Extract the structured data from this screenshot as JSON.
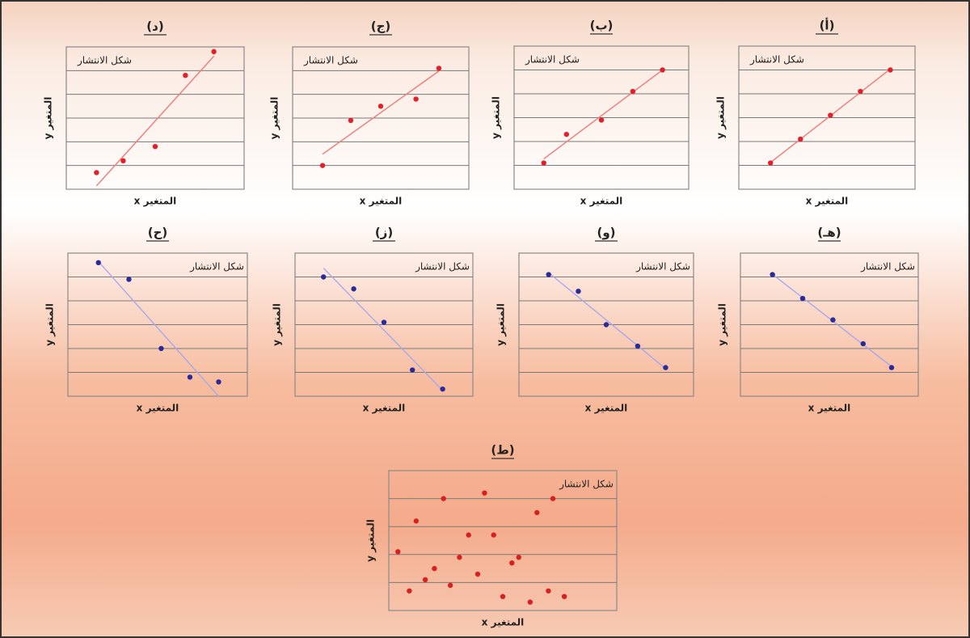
{
  "chart_data": [
    {
      "type": "scatter",
      "label": "(د)",
      "title": "شكل الانتشار",
      "x_label": "المتغير x",
      "y_label": "المتغير y",
      "x": [
        1.7,
        3.2,
        5.0,
        6.7,
        8.3
      ],
      "y": [
        0.7,
        1.2,
        1.8,
        4.8,
        5.8
      ],
      "color": "#e3202a",
      "trendline": true,
      "trendline_color": "#f07a7a",
      "xlim": [
        0,
        10
      ],
      "ylim": [
        0,
        6
      ],
      "yticks": [
        1,
        2,
        3,
        4,
        5
      ],
      "grid": true
    },
    {
      "type": "scatter",
      "label": "(ج)",
      "title": "شكل الانتشار",
      "x_label": "المتغير x",
      "y_label": "المتغير y",
      "x": [
        1.7,
        3.3,
        5.0,
        7.0,
        8.3
      ],
      "y": [
        1.0,
        2.9,
        3.5,
        3.8,
        5.1
      ],
      "color": "#e3202a",
      "trendline": true,
      "trendline_color": "#f07a7a",
      "xlim": [
        0,
        10
      ],
      "ylim": [
        0,
        6
      ],
      "yticks": [
        1,
        2,
        3,
        4,
        5
      ],
      "grid": true
    },
    {
      "type": "scatter",
      "label": "(ب)",
      "title": "شكل الانتشار",
      "x_label": "المتغير x",
      "y_label": "المتغير y",
      "x": [
        1.7,
        3.0,
        5.0,
        6.8,
        8.5
      ],
      "y": [
        1.1,
        2.3,
        2.9,
        4.1,
        5.0
      ],
      "color": "#e3202a",
      "trendline": true,
      "trendline_color": "#f07a7a",
      "xlim": [
        0,
        10
      ],
      "ylim": [
        0,
        6
      ],
      "yticks": [
        1,
        2,
        3,
        4,
        5
      ],
      "grid": true
    },
    {
      "type": "scatter",
      "label": "(أ)",
      "title": "شكل الانتشار",
      "x_label": "المتغير x",
      "y_label": "المتغير y",
      "x": [
        1.8,
        3.5,
        5.2,
        6.9,
        8.6
      ],
      "y": [
        1.1,
        2.1,
        3.1,
        4.1,
        5.0
      ],
      "color": "#e3202a",
      "trendline": true,
      "trendline_color": "#f07a7a",
      "xlim": [
        0,
        10
      ],
      "ylim": [
        0,
        6
      ],
      "yticks": [
        1,
        2,
        3,
        4,
        5
      ],
      "grid": true
    },
    {
      "type": "scatter",
      "label": "(ح)",
      "title": "شكل الانتشار",
      "x_label": "المتغير x",
      "y_label": "المتغير y",
      "x": [
        1.7,
        3.4,
        5.2,
        6.8,
        8.4
      ],
      "y": [
        5.6,
        4.9,
        2.0,
        0.8,
        0.6
      ],
      "color": "#2a2a9a",
      "trendline": true,
      "trendline_color": "#a8a8ec",
      "xlim": [
        0,
        10
      ],
      "ylim": [
        0,
        6
      ],
      "yticks": [
        1,
        2,
        3,
        4,
        5
      ],
      "grid": true
    },
    {
      "type": "scatter",
      "label": "(ز)",
      "title": "شكل الانتشار",
      "x_label": "المتغير x",
      "y_label": "المتغير y",
      "x": [
        1.6,
        3.3,
        5.0,
        6.6,
        8.3
      ],
      "y": [
        5.0,
        4.5,
        3.1,
        1.1,
        0.3
      ],
      "color": "#2a2a9a",
      "trendline": true,
      "trendline_color": "#a8a8ec",
      "xlim": [
        0,
        10
      ],
      "ylim": [
        0,
        6
      ],
      "yticks": [
        1,
        2,
        3,
        4,
        5
      ],
      "grid": true
    },
    {
      "type": "scatter",
      "label": "(و)",
      "title": "شكل الانتشار",
      "x_label": "المتغير x",
      "y_label": "المتغير y",
      "x": [
        1.7,
        3.4,
        5.0,
        6.8,
        8.4
      ],
      "y": [
        5.1,
        4.4,
        3.0,
        2.1,
        1.2
      ],
      "color": "#2a2a9a",
      "trendline": true,
      "trendline_color": "#a8a8ec",
      "xlim": [
        0,
        10
      ],
      "ylim": [
        0,
        6
      ],
      "yticks": [
        1,
        2,
        3,
        4,
        5
      ],
      "grid": true
    },
    {
      "type": "scatter",
      "label": "(هـ)",
      "title": "شكل الانتشار",
      "x_label": "المتغير x",
      "y_label": "المتغير y",
      "x": [
        1.8,
        3.5,
        5.2,
        6.9,
        8.5
      ],
      "y": [
        5.1,
        4.1,
        3.2,
        2.2,
        1.2
      ],
      "color": "#2a2a9a",
      "trendline": true,
      "trendline_color": "#a8a8ec",
      "xlim": [
        0,
        10
      ],
      "ylim": [
        0,
        6
      ],
      "yticks": [
        1,
        2,
        3,
        4,
        5
      ],
      "grid": true
    },
    {
      "type": "scatter",
      "label": "(ط)",
      "title": "شكل الانتشار",
      "x_label": "المتغير x",
      "y_label": "المتغير y",
      "x": [
        2.4,
        4.2,
        7.2,
        1.2,
        6.5,
        3.5,
        4.6,
        0.4,
        3.1,
        5.7,
        5.4,
        2.0,
        1.6,
        3.9,
        2.7,
        0.9,
        5.0,
        7.0,
        6.2,
        7.7
      ],
      "y": [
        4.0,
        4.2,
        4.0,
        3.2,
        3.5,
        2.7,
        2.7,
        2.1,
        1.9,
        1.9,
        1.7,
        1.5,
        1.1,
        1.3,
        0.9,
        0.7,
        0.5,
        0.7,
        0.3,
        0.5
      ],
      "color": "#d82020",
      "trendline": false,
      "xlim": [
        0,
        10
      ],
      "ylim": [
        0,
        5
      ],
      "yticks": [
        1,
        2,
        3,
        4
      ],
      "grid": true
    }
  ]
}
